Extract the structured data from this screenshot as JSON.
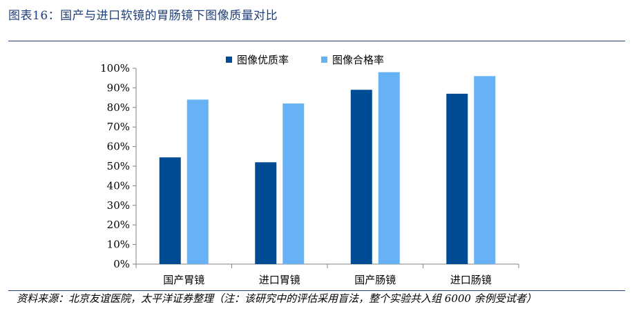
{
  "figure": {
    "title": "图表16：国产与进口软镜的胃肠镜下图像质量对比",
    "source": "资料来源：北京友谊医院，太平洋证券整理（注：该研究中的评估采用盲法，整个实验共入组 6000 余例受试者）"
  },
  "colors": {
    "title": "#1f3f7a",
    "series_1": "#004c94",
    "series_2": "#66b2f5"
  },
  "chart_data": {
    "type": "bar",
    "title": "",
    "xlabel": "",
    "ylabel": "",
    "categories": [
      "国产胃镜",
      "进口胃镜",
      "国产肠镜",
      "进口肠镜"
    ],
    "series": [
      {
        "name": "图像优质率",
        "values": [
          0.545,
          0.52,
          0.89,
          0.87
        ]
      },
      {
        "name": "图像合格率",
        "values": [
          0.84,
          0.82,
          0.98,
          0.96
        ]
      }
    ],
    "ylim": [
      0,
      1
    ],
    "yticks": [
      "0%",
      "10%",
      "20%",
      "30%",
      "40%",
      "50%",
      "60%",
      "70%",
      "80%",
      "90%",
      "100%"
    ],
    "legend": "top",
    "grid": false
  }
}
